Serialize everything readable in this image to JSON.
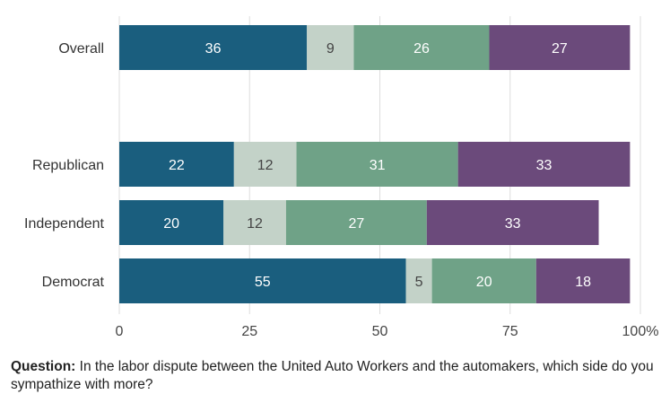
{
  "chart_data": {
    "type": "bar",
    "orientation": "horizontal",
    "stacked": true,
    "categories": [
      "Overall",
      "Republican",
      "Independent",
      "Democrat"
    ],
    "series": [
      {
        "color": "#1a5e7e",
        "label_color": "#ffffff",
        "values": [
          36,
          22,
          20,
          55
        ]
      },
      {
        "color": "#c3d2c8",
        "label_color": "#444444",
        "values": [
          9,
          12,
          12,
          5
        ]
      },
      {
        "color": "#6fa287",
        "label_color": "#ffffff",
        "values": [
          26,
          31,
          27,
          20
        ]
      },
      {
        "color": "#6b4a7b",
        "label_color": "#ffffff",
        "values": [
          27,
          33,
          33,
          18
        ]
      }
    ],
    "xlim": [
      0,
      100
    ],
    "xticks": [
      0,
      25,
      50,
      75,
      100
    ],
    "xtick_labels": [
      "0",
      "25",
      "50",
      "75",
      "100%"
    ],
    "grid": "vertical",
    "gridline_color": "#dddddd"
  },
  "question": {
    "label": "Question:",
    "text": "In the labor dispute between the United Auto Workers and the automakers, which side do you sympathize with more?"
  }
}
